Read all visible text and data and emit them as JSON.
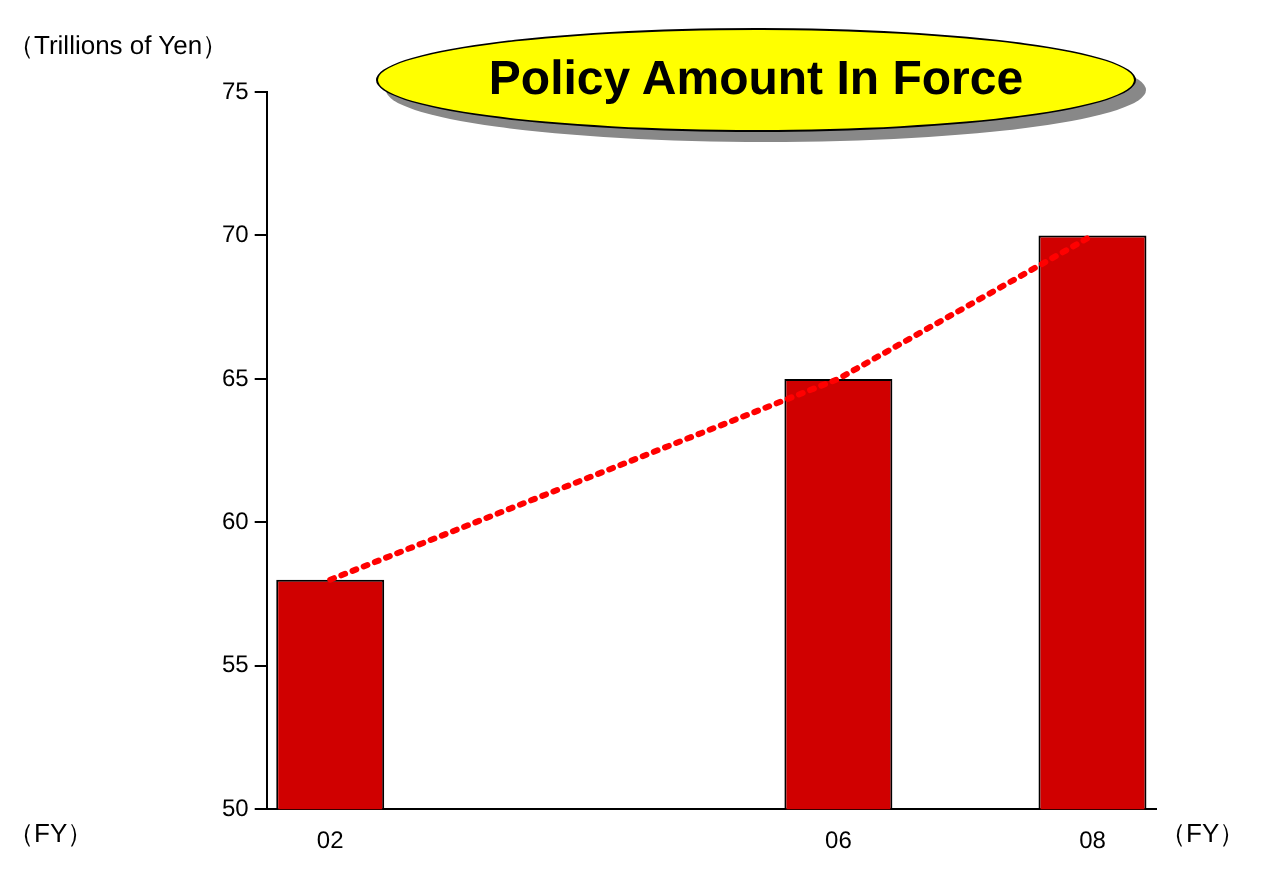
{
  "chart_data": {
    "type": "bar",
    "title": "Policy Amount In Force",
    "ylabel": "（Trillions of Yen）",
    "xlabel": "（FY）",
    "categories": [
      "02",
      null,
      null,
      null,
      "06",
      null,
      "08"
    ],
    "series": [
      {
        "color": "#d00000",
        "values": [
          58,
          null,
          null,
          null,
          65,
          null,
          70
        ]
      },
      {
        "type": "line",
        "color": "#ff0000",
        "line_style": "dotted",
        "values": [
          58,
          null,
          null,
          null,
          65,
          null,
          70
        ]
      }
    ],
    "ylim": [
      50,
      75
    ],
    "yticks": [
      50,
      55,
      60,
      65,
      70,
      75
    ],
    "grid": false,
    "legend": false
  }
}
